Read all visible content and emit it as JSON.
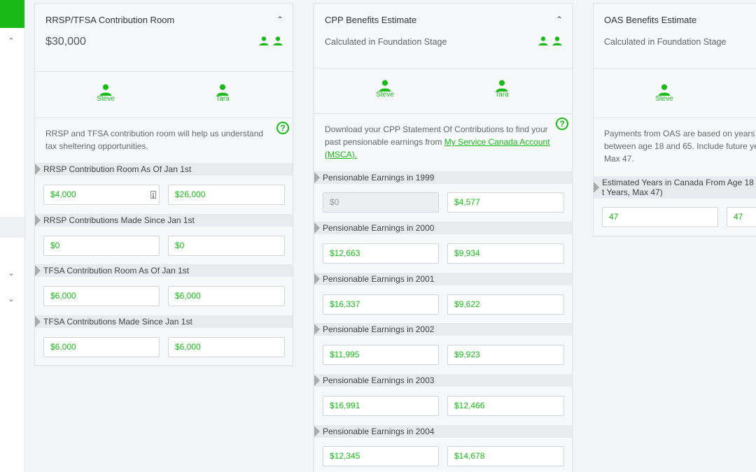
{
  "colors": {
    "accent": "#19b919",
    "panel": "#f6f8fa",
    "label_bg": "#e8eaed"
  },
  "sidebar": {
    "icons": [
      "chevron-up-icon",
      "chevron-down-icon",
      "chevron-down-icon"
    ]
  },
  "people": {
    "p1": "Steve",
    "p2": "Tara"
  },
  "rrsp": {
    "title": "RRSP/TFSA Contribution Room",
    "amount": "$30,000",
    "description": "RRSP and TFSA contribution room will help us understand tax sheltering opportunities.",
    "sections": [
      {
        "label": "RRSP Contribution Room As Of Jan 1st",
        "v1": "$4,000",
        "v2": "$26,000"
      },
      {
        "label": "RRSP Contributions Made Since Jan 1st",
        "v1": "$0",
        "v2": "$0"
      },
      {
        "label": "TFSA Contribution Room As Of Jan 1st",
        "v1": "$6,000",
        "v2": "$6,000"
      },
      {
        "label": "TFSA Contributions Made Since Jan 1st",
        "v1": "$6,000",
        "v2": "$6,000"
      }
    ]
  },
  "cpp": {
    "title": "CPP Benefits Estimate",
    "subtitle": "Calculated in Foundation Stage",
    "desc_text": "Download your CPP Statement Of Contributions to find your past pensionable earnings from ",
    "desc_link": "My Service Canada Account (MSCA).",
    "sections": [
      {
        "label": "Pensionable Earnings in 1999",
        "v1": "$0",
        "v2": "$4,577"
      },
      {
        "label": "Pensionable Earnings in 2000",
        "v1": "$12,663",
        "v2": "$9,934"
      },
      {
        "label": "Pensionable Earnings in 2001",
        "v1": "$16,337",
        "v2": "$9,622"
      },
      {
        "label": "Pensionable Earnings in 2002",
        "v1": "$11,995",
        "v2": "$9,923"
      },
      {
        "label": "Pensionable Earnings in 2003",
        "v1": "$16,991",
        "v2": "$12,466"
      },
      {
        "label": "Pensionable Earnings in 2004",
        "v1": "$12,345",
        "v2": "$14,678"
      }
    ]
  },
  "oas": {
    "title": "OAS Benefits Estimate",
    "subtitle": "Calculated in Foundation Stage",
    "description": "Payments from OAS are based on years l between age 18 and 65. Include future ye Max 47.",
    "section_label": "Estimated Years in Canada From Age 18 t Years, Max 47)",
    "v1": "47",
    "v2": "47"
  }
}
